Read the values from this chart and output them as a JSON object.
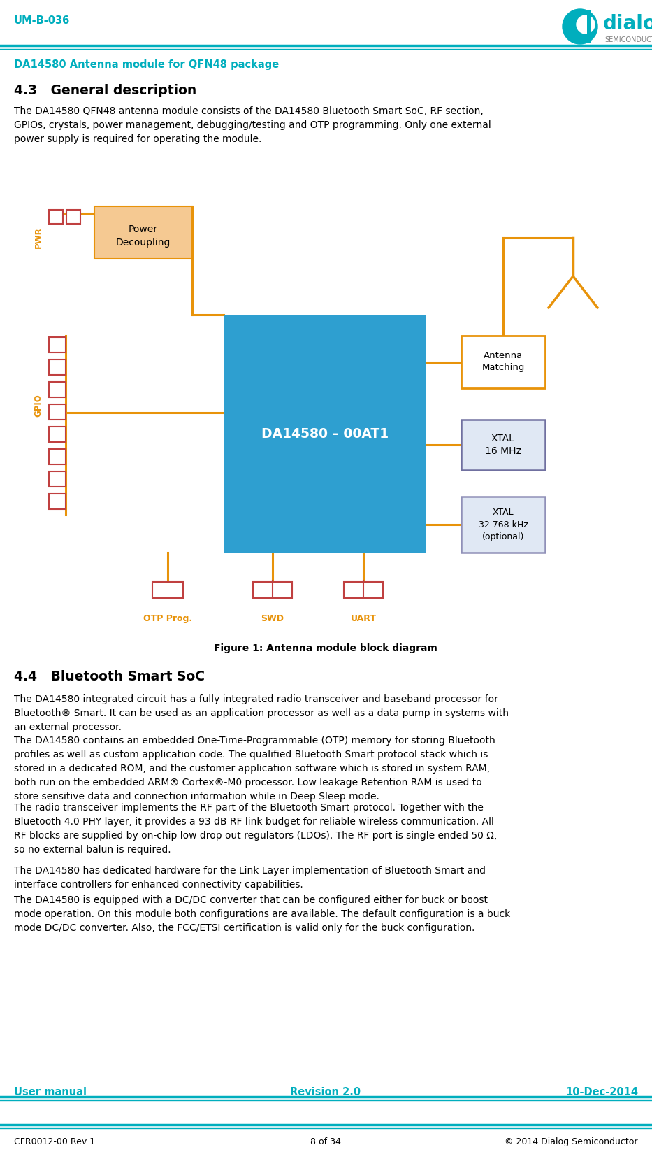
{
  "page_width": 9.33,
  "page_height": 16.5,
  "dpi": 100,
  "bg_color": "#ffffff",
  "teal": "#00AEBD",
  "header_text": "UM-B-036",
  "subtitle": "DA14580 Antenna module for QFN48 package",
  "section_43_title": "4.3   General description",
  "section_43_body": "The DA14580 QFN48 antenna module consists of the DA14580 Bluetooth Smart SoC, RF section,\nGPIOs, crystals, power management, debugging/testing and OTP programming. Only one external\npower supply is required for operating the module.",
  "figure_caption": "Figure 1: Antenna module block diagram",
  "section_44_title": "4.4   Bluetooth Smart SoC",
  "section_44_para1": "The DA14580 integrated circuit has a fully integrated radio transceiver and baseband processor for\nBluetooth® Smart. It can be used as an application processor as well as a data pump in systems with\nan external processor.",
  "section_44_para2": "The DA14580 contains an embedded One-Time-Programmable (OTP) memory for storing Bluetooth\nprofiles as well as custom application code. The qualified Bluetooth Smart protocol stack which is\nstored in a dedicated ROM, and the customer application software which is stored in system RAM,\nboth run on the embedded ARM® Cortex®-M0 processor. Low leakage Retention RAM is used to\nstore sensitive data and connection information while in Deep Sleep mode.",
  "section_44_para3": "The radio transceiver implements the RF part of the Bluetooth Smart protocol. Together with the\nBluetooth 4.0 PHY layer, it provides a 93 dB RF link budget for reliable wireless communication. All\nRF blocks are supplied by on-chip low drop out regulators (LDOs). The RF port is single ended 50 Ω,\nso no external balun is required.",
  "section_44_para4": "The DA14580 has dedicated hardware for the Link Layer implementation of Bluetooth Smart and\ninterface controllers for enhanced connectivity capabilities.",
  "section_44_para5": "The DA14580 is equipped with a DC/DC converter that can be configured either for buck or boost\nmode operation. On this module both configurations are available. The default configuration is a buck\nmode DC/DC converter. Also, the FCC/ETSI certification is valid only for the buck configuration.",
  "footer_left": "User manual",
  "footer_center": "Revision 2.0",
  "footer_right": "10-Dec-2014",
  "footer2_left": "CFR0012-00 Rev 1",
  "footer2_center": "8 of 34",
  "footer2_right": "© 2014 Dialog Semiconductor",
  "orange": "#E8930A",
  "light_orange": "#F5C992",
  "blue_soc": "#2E9FD0",
  "red_connector": "#C04040",
  "xtal_edge": "#7070A0",
  "xtal_face": "#E0E8F4"
}
